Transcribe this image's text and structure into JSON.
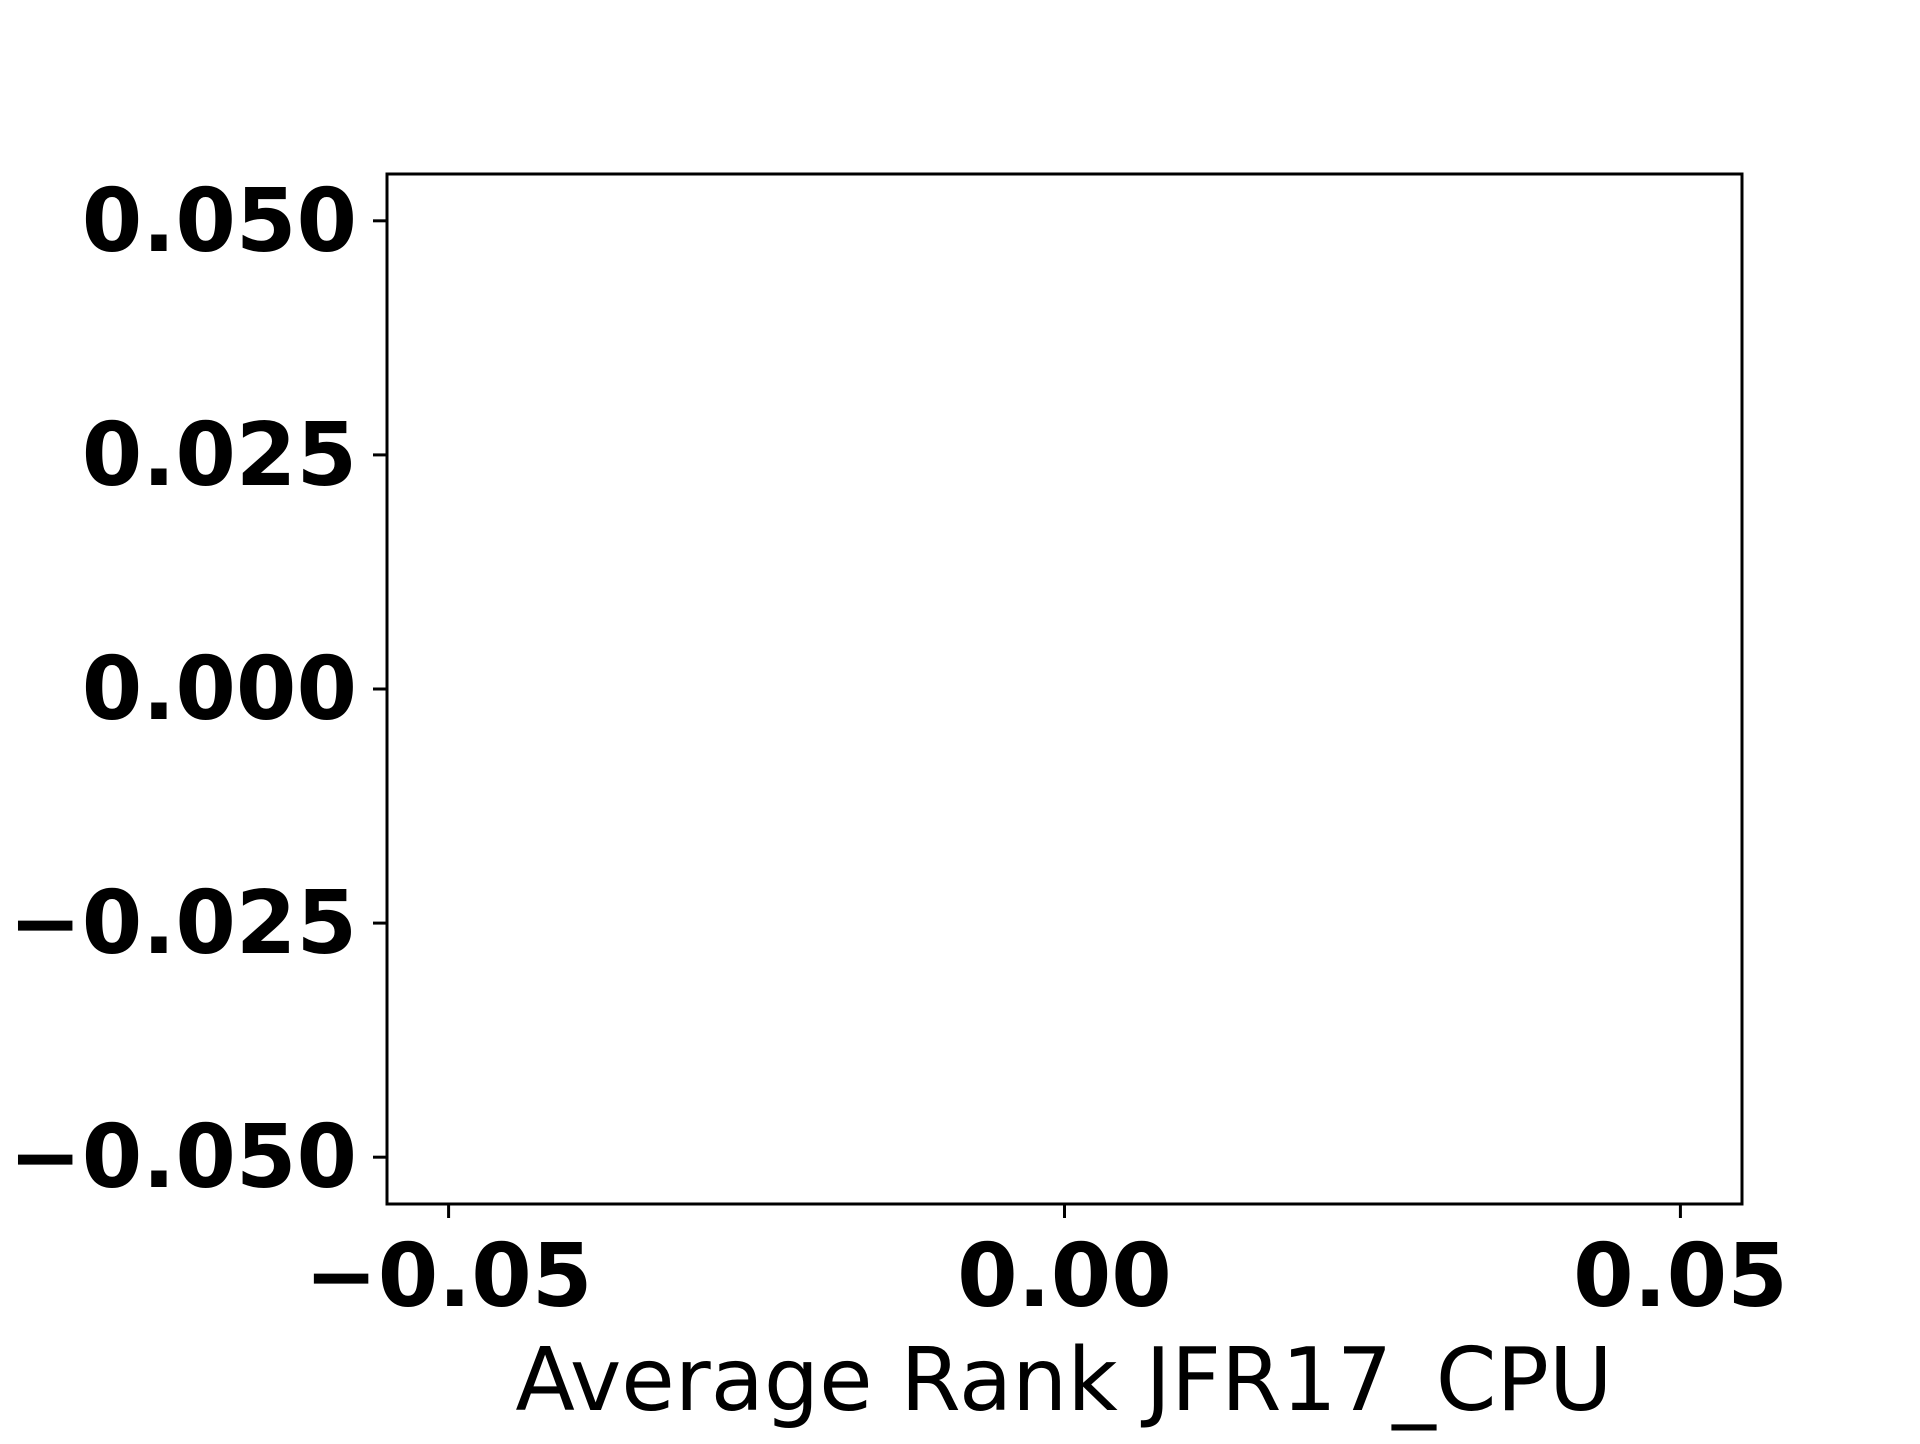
{
  "chart_data": {
    "type": "scatter",
    "title": "",
    "xlabel": "Average Rank JFR17_CPU",
    "ylabel": "",
    "xlim": [
      -0.055,
      0.055
    ],
    "ylim": [
      -0.055,
      0.055
    ],
    "x_ticks": [
      -0.05,
      0.0,
      0.05
    ],
    "x_tick_labels": [
      "−0.05",
      "0.00",
      "0.05"
    ],
    "y_ticks": [
      0.05,
      0.025,
      0.0,
      -0.025,
      -0.05
    ],
    "y_tick_labels": [
      "0.050",
      "0.025",
      "0.000",
      "−0.025",
      "−0.050"
    ],
    "series": [],
    "grid": false,
    "legend": "none",
    "colors": {
      "axis": "#000000",
      "background": "#ffffff"
    }
  }
}
